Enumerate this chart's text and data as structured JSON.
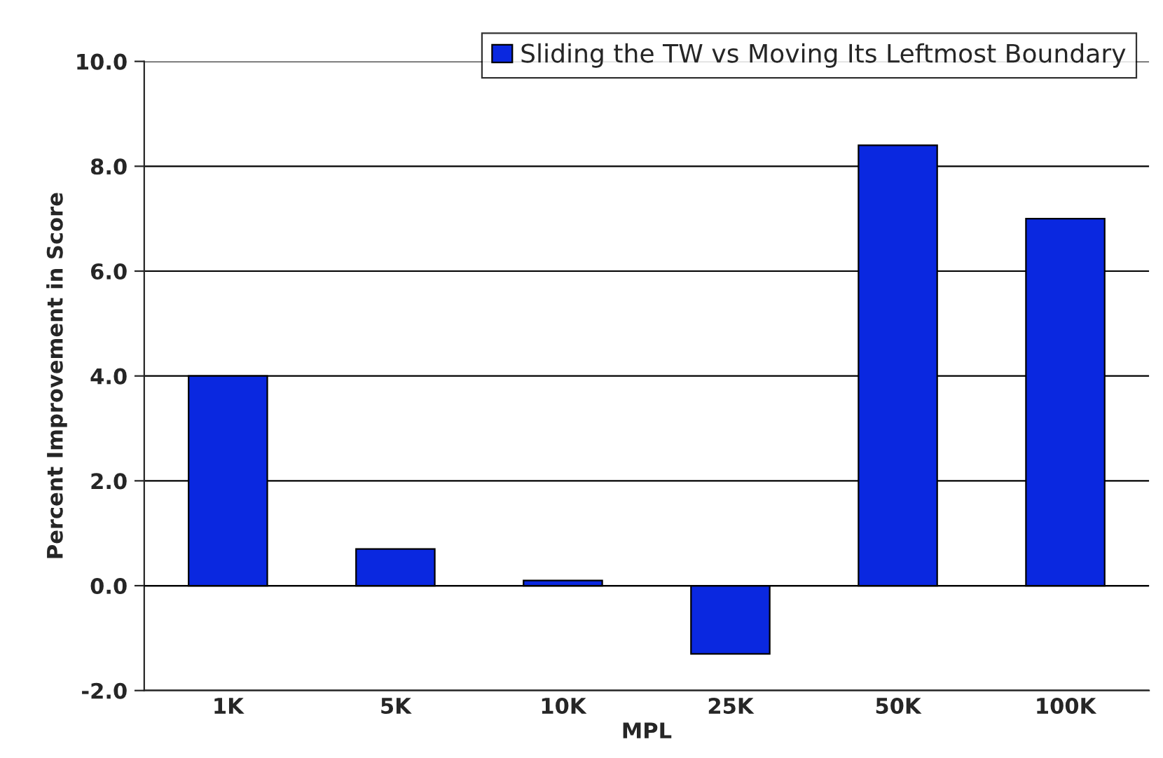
{
  "chart_data": {
    "type": "bar",
    "xlabel": "MPL",
    "ylabel": "Percent Improvement in Score",
    "categories": [
      "1K",
      "5K",
      "10K",
      "25K",
      "50K",
      "100K"
    ],
    "series": [
      {
        "name": "Sliding the TW vs Moving Its Leftmost Boundary",
        "color": "#0a28e0",
        "values": [
          4.0,
          0.7,
          0.1,
          -1.3,
          8.4,
          7.0
        ]
      }
    ],
    "ylim": [
      -2,
      10
    ],
    "yticks": [
      {
        "value": -2,
        "label": "-2.0"
      },
      {
        "value": 0,
        "label": "0.0"
      },
      {
        "value": 2,
        "label": "2.0"
      },
      {
        "value": 4,
        "label": "4.0"
      },
      {
        "value": 6,
        "label": "6.0"
      },
      {
        "value": 8,
        "label": "8.0"
      },
      {
        "value": 10,
        "label": "10.0"
      }
    ],
    "grid": "y",
    "legend": "top right"
  }
}
